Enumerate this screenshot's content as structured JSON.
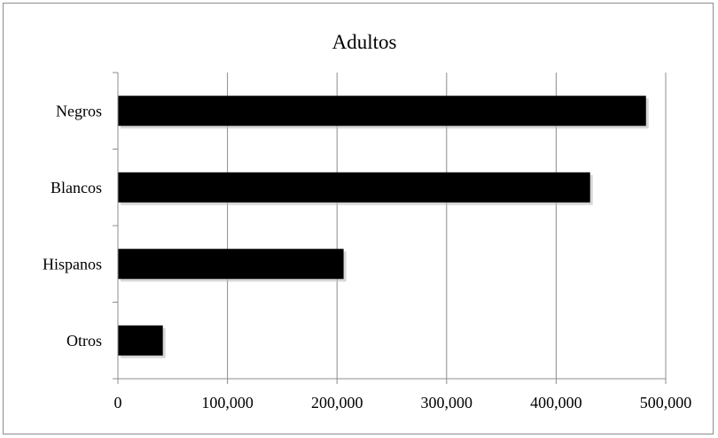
{
  "chart_data": {
    "type": "bar",
    "orientation": "horizontal",
    "title": "Adultos",
    "categories": [
      "Negros",
      "Blancos",
      "Hispanos",
      "Otros"
    ],
    "values": [
      482000,
      431000,
      206000,
      41000
    ],
    "xlim": [
      0,
      500000
    ],
    "xticks": [
      "0",
      "100,000",
      "200,000",
      "300,000",
      "400,000",
      "500,000"
    ],
    "grid": true,
    "legend": "none",
    "colors": {
      "bar": "#000000",
      "grid": "#8c8c8c",
      "axis": "#8c8c8c"
    }
  }
}
